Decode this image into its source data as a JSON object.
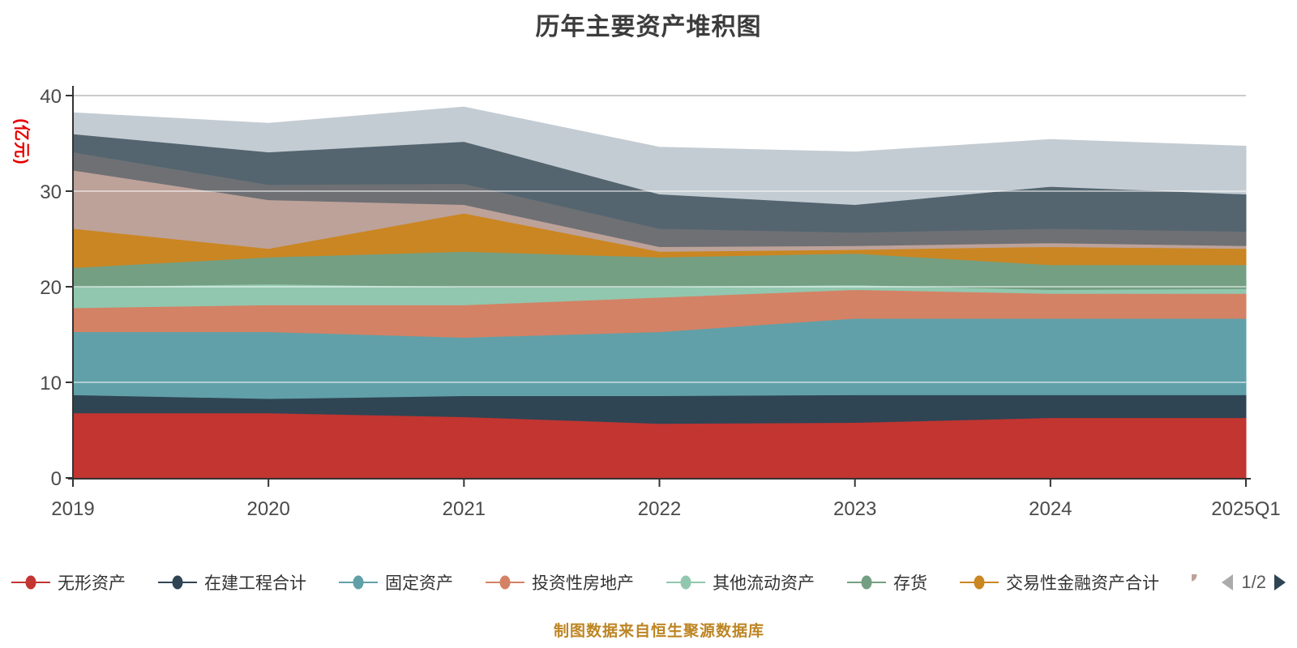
{
  "title": "历年主要资产堆积图",
  "caption": "制图数据来自恒生聚源数据库",
  "y_axis": {
    "name": "(亿元)",
    "name_color": "#e60000",
    "ticks": [
      0,
      10,
      20,
      30,
      40
    ],
    "max": 40,
    "label_color": "#4a4a4a"
  },
  "x_axis": {
    "categories": [
      "2019",
      "2020",
      "2021",
      "2022",
      "2023",
      "2024",
      "2025Q1"
    ],
    "label_color": "#4a4a4a"
  },
  "legend": {
    "page_label": "1/2",
    "prev_icon_color": "#ababab",
    "next_icon_color": "#2f4554",
    "truncated_item_color": "#bda29a",
    "items": [
      {
        "label": "无形资产",
        "color": "#c23531"
      },
      {
        "label": "在建工程合计",
        "color": "#2f4554"
      },
      {
        "label": "固定资产",
        "color": "#61a0a8"
      },
      {
        "label": "投资性房地产",
        "color": "#d48265"
      },
      {
        "label": "其他流动资产",
        "color": "#91c7ae"
      },
      {
        "label": "存货",
        "color": "#749f83"
      },
      {
        "label": "交易性金融资产合计",
        "color": "#ca8622"
      }
    ]
  },
  "chart_data": {
    "type": "area",
    "stacked": true,
    "title": "历年主要资产堆积图",
    "xlabel": "",
    "ylabel": "(亿元)",
    "ylim": [
      0,
      40
    ],
    "grid": true,
    "legend_position": "bottom",
    "categories": [
      "2019",
      "2020",
      "2021",
      "2022",
      "2023",
      "2024",
      "2025Q1"
    ],
    "series": [
      {
        "name": "无形资产",
        "color": "#c23531",
        "legend_page": 1,
        "values": [
          6.8,
          6.8,
          6.4,
          5.7,
          5.8,
          6.3,
          6.3
        ]
      },
      {
        "name": "在建工程合计",
        "color": "#2f4554",
        "legend_page": 1,
        "values": [
          1.9,
          1.5,
          2.2,
          2.9,
          2.9,
          2.4,
          2.4
        ]
      },
      {
        "name": "固定资产",
        "color": "#61a0a8",
        "legend_page": 1,
        "values": [
          6.6,
          7.0,
          6.1,
          6.7,
          8.0,
          8.0,
          8.0
        ]
      },
      {
        "name": "投资性房地产",
        "color": "#d48265",
        "legend_page": 1,
        "values": [
          2.5,
          2.8,
          3.4,
          3.6,
          3.0,
          2.6,
          2.6
        ]
      },
      {
        "name": "其他流动资产",
        "color": "#91c7ae",
        "legend_page": 1,
        "values": [
          2.2,
          2.2,
          1.9,
          1.1,
          0.5,
          0.4,
          0.5
        ]
      },
      {
        "name": "存货",
        "color": "#749f83",
        "legend_page": 1,
        "values": [
          2.0,
          2.8,
          3.7,
          3.1,
          3.3,
          2.6,
          2.5
        ]
      },
      {
        "name": "交易性金融资产合计",
        "color": "#ca8622",
        "legend_page": 1,
        "values": [
          4.1,
          0.9,
          4.0,
          0.6,
          0.4,
          1.9,
          1.7
        ]
      },
      {
        "name": null,
        "color": "#bda29a",
        "legend_page": 2,
        "values": [
          6.1,
          5.1,
          0.9,
          0.5,
          0.4,
          0.4,
          0.3
        ]
      },
      {
        "name": null,
        "color": "#6e7074",
        "legend_page": 2,
        "values": [
          1.9,
          1.6,
          2.2,
          1.9,
          1.4,
          1.5,
          1.5
        ]
      },
      {
        "name": null,
        "color": "#546570",
        "legend_page": 2,
        "values": [
          1.9,
          3.4,
          4.4,
          3.6,
          2.9,
          4.4,
          3.9
        ]
      },
      {
        "name": null,
        "color": "#c4ccd3",
        "legend_page": 2,
        "values": [
          2.2,
          3.0,
          3.6,
          4.9,
          5.5,
          4.9,
          5.0
        ]
      }
    ]
  },
  "plot_style": {
    "axis_line_color": "#333333",
    "grid_line_color_over_area": "rgba(255,255,255,0.5)",
    "top_grid_line_color": "#cbcbcb"
  }
}
